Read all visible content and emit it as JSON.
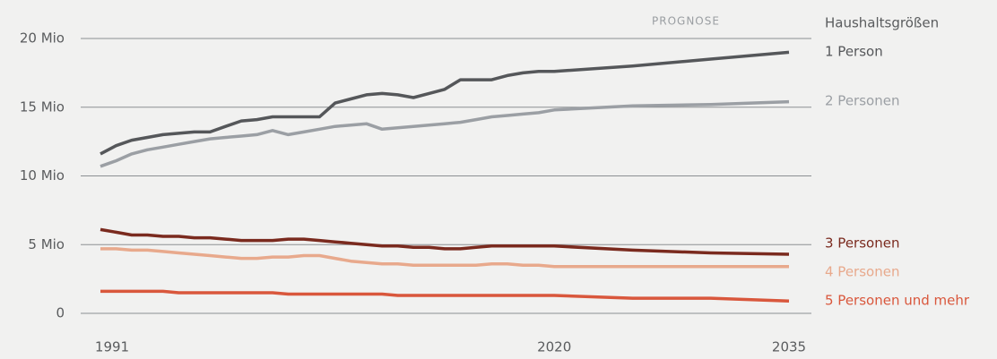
{
  "chart_data": {
    "type": "line",
    "annotation": "PROGNOSE",
    "legend_title": "Haushaltsgrößen",
    "x": [
      1991,
      1992,
      1993,
      1994,
      1995,
      1996,
      1997,
      1998,
      1999,
      2000,
      2001,
      2002,
      2003,
      2004,
      2005,
      2006,
      2007,
      2008,
      2009,
      2010,
      2011,
      2012,
      2013,
      2014,
      2015,
      2016,
      2017,
      2018,
      2019,
      2020,
      2025,
      2030,
      2035
    ],
    "xlim": [
      1991,
      2035
    ],
    "xticks": [
      1991,
      2020,
      2035
    ],
    "ylim": [
      0,
      20
    ],
    "yticks": [
      0,
      {
        "value": 5,
        "label": "5 Mio"
      },
      {
        "value": 10,
        "label": "10 Mio"
      },
      {
        "value": 15,
        "label": "15 Mio"
      },
      {
        "value": 20,
        "label": "20 Mio"
      }
    ],
    "grid": true,
    "legend": "right",
    "series": [
      {
        "name": "1 Person",
        "color": "#55575a",
        "values": [
          11.6,
          12.2,
          12.6,
          12.8,
          13.0,
          13.1,
          13.2,
          13.2,
          13.6,
          14.0,
          14.1,
          14.3,
          14.3,
          14.3,
          14.3,
          15.3,
          15.6,
          15.9,
          16.0,
          15.9,
          15.7,
          16.0,
          16.3,
          17.0,
          17.0,
          17.0,
          17.3,
          17.5,
          17.6,
          17.6,
          18.0,
          18.5,
          19.0
        ]
      },
      {
        "name": "2 Personen",
        "color": "#9b9fa4",
        "values": [
          10.7,
          11.1,
          11.6,
          11.9,
          12.1,
          12.3,
          12.5,
          12.7,
          12.8,
          12.9,
          13.0,
          13.3,
          13.0,
          13.2,
          13.4,
          13.6,
          13.7,
          13.8,
          13.4,
          13.5,
          13.6,
          13.7,
          13.8,
          13.9,
          14.1,
          14.3,
          14.4,
          14.5,
          14.6,
          14.8,
          15.1,
          15.2,
          15.4
        ]
      },
      {
        "name": "3 Personen",
        "color": "#7a2a1e",
        "values": [
          6.1,
          5.9,
          5.7,
          5.7,
          5.6,
          5.6,
          5.5,
          5.5,
          5.4,
          5.3,
          5.3,
          5.3,
          5.4,
          5.4,
          5.3,
          5.2,
          5.1,
          5.0,
          4.9,
          4.9,
          4.8,
          4.8,
          4.7,
          4.7,
          4.8,
          4.9,
          4.9,
          4.9,
          4.9,
          4.9,
          4.6,
          4.4,
          4.3
        ]
      },
      {
        "name": "4 Personen",
        "color": "#e8a98c",
        "values": [
          4.7,
          4.7,
          4.6,
          4.6,
          4.5,
          4.4,
          4.3,
          4.2,
          4.1,
          4.0,
          4.0,
          4.1,
          4.1,
          4.2,
          4.2,
          4.0,
          3.8,
          3.7,
          3.6,
          3.6,
          3.5,
          3.5,
          3.5,
          3.5,
          3.5,
          3.6,
          3.6,
          3.5,
          3.5,
          3.4,
          3.4,
          3.4,
          3.4
        ]
      },
      {
        "name": "5 Personen und mehr",
        "color": "#d9573c",
        "values": [
          1.6,
          1.6,
          1.6,
          1.6,
          1.6,
          1.5,
          1.5,
          1.5,
          1.5,
          1.5,
          1.5,
          1.5,
          1.4,
          1.4,
          1.4,
          1.4,
          1.4,
          1.4,
          1.4,
          1.3,
          1.3,
          1.3,
          1.3,
          1.3,
          1.3,
          1.3,
          1.3,
          1.3,
          1.3,
          1.3,
          1.1,
          1.1,
          0.9
        ]
      }
    ]
  }
}
